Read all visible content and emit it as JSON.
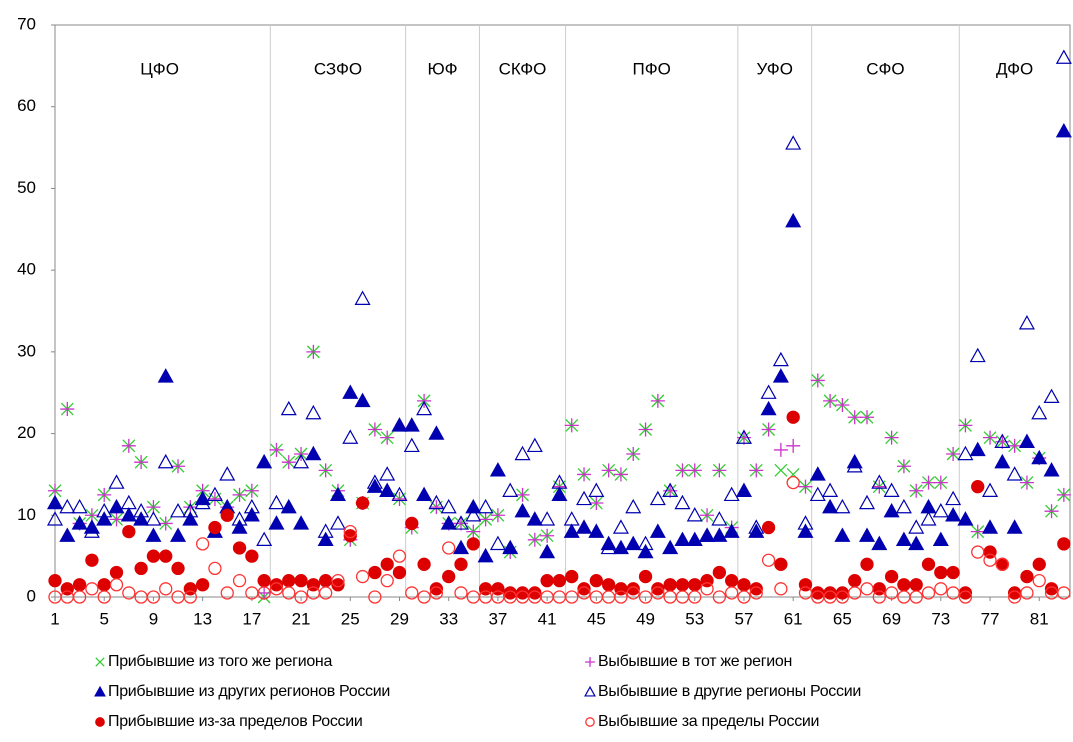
{
  "chart_data": {
    "type": "scatter",
    "districts": [
      {
        "label": "ЦФО",
        "from": 1,
        "to": 18
      },
      {
        "label": "СЗФО",
        "from": 19,
        "to": 29
      },
      {
        "label": "ЮФ",
        "from": 30,
        "to": 35
      },
      {
        "label": "СКФО",
        "from": 36,
        "to": 42
      },
      {
        "label": "ПФО",
        "from": 43,
        "to": 56
      },
      {
        "label": "УФО",
        "from": 57,
        "to": 62
      },
      {
        "label": "СФО",
        "from": 63,
        "to": 74
      },
      {
        "label": "ДФО",
        "from": 75,
        "to": 83
      }
    ],
    "x": [
      1,
      2,
      3,
      4,
      5,
      6,
      7,
      8,
      9,
      10,
      11,
      12,
      13,
      14,
      15,
      16,
      17,
      18,
      19,
      20,
      21,
      22,
      23,
      24,
      25,
      26,
      27,
      28,
      29,
      30,
      31,
      32,
      33,
      34,
      35,
      36,
      37,
      38,
      39,
      40,
      41,
      42,
      43,
      44,
      45,
      46,
      47,
      48,
      49,
      50,
      51,
      52,
      53,
      54,
      55,
      56,
      57,
      58,
      59,
      60,
      61,
      62,
      63,
      64,
      65,
      66,
      67,
      68,
      69,
      70,
      71,
      72,
      73,
      74,
      75,
      76,
      77,
      78,
      79,
      80,
      81,
      82,
      83
    ],
    "xlim": [
      1,
      83.5
    ],
    "xticks": [
      1,
      5,
      9,
      13,
      17,
      21,
      25,
      29,
      33,
      37,
      41,
      45,
      49,
      53,
      57,
      61,
      65,
      69,
      73,
      77,
      81
    ],
    "ylim": [
      0,
      70
    ],
    "yticks": [
      0,
      10,
      20,
      30,
      40,
      50,
      60,
      70
    ],
    "series": [
      {
        "name": "Прибывшие из того же региона",
        "color": "#33cc33",
        "marker": "x",
        "values": [
          13,
          23,
          9,
          10,
          12.5,
          9.5,
          18.5,
          16.5,
          11,
          9,
          16,
          11,
          13,
          12,
          11,
          12.5,
          13,
          0,
          18,
          16.5,
          17.5,
          30,
          15.5,
          13,
          7,
          11.5,
          20.5,
          19.5,
          12,
          8.5,
          24,
          11,
          9,
          9,
          8,
          9.5,
          10,
          5.5,
          12.5,
          7,
          7.5,
          13.5,
          21,
          15,
          11.5,
          15.5,
          15,
          17.5,
          20.5,
          24,
          13,
          15.5,
          15.5,
          10,
          15.5,
          8.5,
          19.5,
          15.5,
          20.5,
          15.5,
          15,
          13.5,
          26.5,
          24,
          23.5,
          22,
          22,
          13.5,
          19.5,
          16,
          13,
          14,
          14,
          17.5,
          21,
          8,
          19.5,
          19,
          18.5,
          14,
          17,
          10.5,
          12.5
        ]
      },
      {
        "name": "Выбывшие в тот же регион",
        "color": "#cc33cc",
        "marker": "plus",
        "values": [
          13,
          23,
          9,
          10,
          12.5,
          9.5,
          18.5,
          16.5,
          11,
          9,
          16,
          11,
          13,
          12,
          11,
          12.5,
          13,
          0.5,
          18,
          16.5,
          17.5,
          30,
          15.5,
          13,
          7,
          11.5,
          20.5,
          19.5,
          12,
          8.5,
          24,
          11,
          9,
          9,
          8,
          9.5,
          10,
          5.5,
          12.5,
          7,
          7.5,
          13.5,
          21,
          15,
          11.5,
          15.5,
          15,
          17.5,
          20.5,
          24,
          13,
          15.5,
          15.5,
          10,
          15.5,
          8.5,
          19.5,
          15.5,
          20.5,
          18,
          18.5,
          13.5,
          26.5,
          24,
          23.5,
          22,
          22,
          13.5,
          19.5,
          16,
          13,
          14,
          14,
          17.5,
          21,
          8,
          19.5,
          19,
          18.5,
          14,
          17,
          10.5,
          12.5
        ]
      },
      {
        "name": "Прибывшие из других регионов России",
        "color": "#0000b0",
        "marker": "triangle",
        "values": [
          11.5,
          7.5,
          9,
          8.5,
          9.5,
          11,
          10,
          9.5,
          7.5,
          27,
          7.5,
          9.5,
          12,
          8,
          11,
          8.5,
          10,
          16.5,
          9,
          11,
          9,
          17.5,
          7,
          12.5,
          25,
          24,
          13.5,
          13,
          21,
          21,
          12.5,
          20,
          9,
          6,
          11,
          5,
          15.5,
          6,
          10.5,
          9.5,
          5.5,
          12.5,
          8,
          8.5,
          8,
          6.5,
          6,
          6.5,
          5.5,
          8,
          6,
          7,
          7,
          7.5,
          7.5,
          8,
          13,
          8,
          23,
          27,
          46,
          8,
          15,
          11,
          7.5,
          16.5,
          7.5,
          6.5,
          10.5,
          7,
          6.5,
          11,
          7,
          10,
          9.5,
          18,
          8.5,
          16.5,
          8.5,
          19,
          17,
          15.5,
          57
        ]
      },
      {
        "name": "Выбывшие в другие регионы России",
        "color": "#0000b0",
        "marker": "triangle-open",
        "values": [
          9.5,
          11,
          11,
          8,
          10.5,
          14,
          11.5,
          10.5,
          9.5,
          16.5,
          10.5,
          10.5,
          11.5,
          12.5,
          15,
          9.5,
          11,
          7,
          11.5,
          23,
          16.5,
          22.5,
          8,
          9,
          19.5,
          36.5,
          14,
          15,
          12.5,
          18.5,
          23,
          11.5,
          11,
          9,
          10,
          11,
          6.5,
          13,
          17.5,
          18.5,
          9.5,
          14,
          9.5,
          12,
          13,
          6,
          8.5,
          11,
          6.5,
          12,
          13,
          11.5,
          10,
          7.5,
          9.5,
          12.5,
          19.5,
          8.5,
          25,
          29,
          55.5,
          9,
          12.5,
          13,
          11,
          16,
          11.5,
          14,
          13,
          11,
          8.5,
          9.5,
          10.5,
          12,
          17.5,
          29.5,
          13,
          19,
          15,
          33.5,
          22.5,
          24.5,
          66
        ]
      },
      {
        "name": "Прибывшие из-за пределов России",
        "color": "#dd0000",
        "marker": "circle",
        "values": [
          2,
          1,
          1.5,
          4.5,
          1.5,
          3,
          8,
          3.5,
          5,
          5,
          3.5,
          1,
          1.5,
          8.5,
          10,
          6,
          5,
          2,
          1.5,
          2,
          2,
          1.5,
          2,
          1.5,
          7.5,
          11.5,
          3,
          4,
          3,
          9,
          4,
          1,
          2.5,
          4,
          6.5,
          1,
          1,
          0.5,
          0.5,
          0.5,
          2,
          2,
          2.5,
          1,
          2,
          1.5,
          1,
          1,
          2.5,
          1,
          1.5,
          1.5,
          1.5,
          2,
          3,
          2,
          1.5,
          1,
          8.5,
          4,
          22,
          1.5,
          0.5,
          0.5,
          0.5,
          2,
          4,
          1,
          2.5,
          1.5,
          1.5,
          4,
          3,
          3,
          0.5,
          13.5,
          5.5,
          4,
          0.5,
          2.5,
          4,
          1,
          6.5
        ]
      },
      {
        "name": "Выбывшие за пределы России",
        "color": "#ff3333",
        "marker": "circle-open",
        "values": [
          0,
          0,
          0,
          1,
          0,
          1.5,
          0.5,
          0,
          0,
          1,
          0,
          0,
          6.5,
          3.5,
          0.5,
          2,
          0.5,
          0.5,
          1,
          0.5,
          0,
          0.5,
          0.5,
          2,
          8,
          2.5,
          0,
          2,
          5,
          0.5,
          0,
          0.5,
          6,
          0.5,
          0,
          0,
          0,
          0,
          0,
          0,
          0,
          0,
          0,
          0.5,
          0,
          0,
          0,
          0.5,
          0,
          0.5,
          0,
          0,
          0,
          1,
          0,
          0.5,
          0,
          0.5,
          4.5,
          1,
          14,
          0.5,
          0,
          0,
          0,
          0.5,
          1,
          0,
          0.5,
          0,
          0,
          0.5,
          1,
          0.5,
          0,
          5.5,
          4.5,
          4,
          0,
          0.5,
          2,
          0.5,
          0.5
        ]
      }
    ]
  }
}
